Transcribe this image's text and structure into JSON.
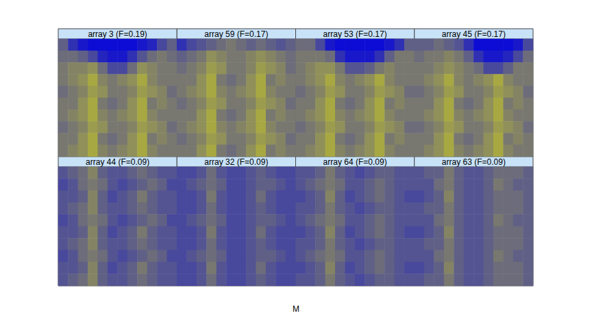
{
  "chart_data": {
    "type": "heatmap",
    "xlabel": "M",
    "tick_labels": false,
    "color_range": [
      0,
      1
    ],
    "colors": [
      "#0000e0",
      "#f0f000"
    ],
    "panels": [
      {
        "title": "array 3 (F=0.19)",
        "cells": [
          [
            0.4,
            0.2,
            0.1,
            0.05,
            0.05,
            0.05,
            0.05,
            0.05,
            0.1,
            0.15,
            0.3,
            0.4
          ],
          [
            0.45,
            0.45,
            0.4,
            0.3,
            0.15,
            0.1,
            0.1,
            0.2,
            0.35,
            0.45,
            0.5,
            0.45
          ],
          [
            0.5,
            0.55,
            0.55,
            0.6,
            0.45,
            0.3,
            0.3,
            0.45,
            0.6,
            0.55,
            0.5,
            0.5
          ],
          [
            0.5,
            0.55,
            0.6,
            0.7,
            0.55,
            0.5,
            0.55,
            0.6,
            0.7,
            0.55,
            0.5,
            0.5
          ],
          [
            0.45,
            0.5,
            0.55,
            0.65,
            0.6,
            0.5,
            0.5,
            0.55,
            0.65,
            0.6,
            0.55,
            0.45
          ],
          [
            0.5,
            0.5,
            0.6,
            0.7,
            0.5,
            0.45,
            0.5,
            0.6,
            0.7,
            0.5,
            0.55,
            0.5
          ],
          [
            0.5,
            0.55,
            0.6,
            0.7,
            0.55,
            0.5,
            0.55,
            0.6,
            0.7,
            0.55,
            0.5,
            0.5
          ],
          [
            0.45,
            0.5,
            0.55,
            0.65,
            0.6,
            0.5,
            0.5,
            0.55,
            0.65,
            0.6,
            0.55,
            0.45
          ],
          [
            0.5,
            0.5,
            0.6,
            0.7,
            0.5,
            0.45,
            0.5,
            0.6,
            0.7,
            0.5,
            0.55,
            0.5
          ],
          [
            0.5,
            0.55,
            0.6,
            0.7,
            0.55,
            0.5,
            0.55,
            0.6,
            0.7,
            0.55,
            0.5,
            0.5
          ]
        ]
      },
      {
        "title": "array 59 (F=0.17)",
        "cells": [
          [
            0.2,
            0.3,
            0.35,
            0.4,
            0.45,
            0.5,
            0.45,
            0.4,
            0.45,
            0.4,
            0.35,
            0.4
          ],
          [
            0.4,
            0.45,
            0.5,
            0.6,
            0.55,
            0.5,
            0.5,
            0.55,
            0.6,
            0.55,
            0.5,
            0.45
          ],
          [
            0.45,
            0.5,
            0.55,
            0.65,
            0.6,
            0.5,
            0.5,
            0.55,
            0.65,
            0.6,
            0.55,
            0.45
          ],
          [
            0.5,
            0.5,
            0.6,
            0.7,
            0.5,
            0.45,
            0.5,
            0.6,
            0.7,
            0.5,
            0.55,
            0.5
          ],
          [
            0.5,
            0.55,
            0.6,
            0.7,
            0.55,
            0.5,
            0.55,
            0.6,
            0.7,
            0.55,
            0.5,
            0.5
          ],
          [
            0.45,
            0.5,
            0.55,
            0.65,
            0.6,
            0.5,
            0.5,
            0.55,
            0.65,
            0.6,
            0.55,
            0.45
          ],
          [
            0.5,
            0.5,
            0.6,
            0.7,
            0.5,
            0.45,
            0.5,
            0.6,
            0.7,
            0.5,
            0.55,
            0.5
          ],
          [
            0.5,
            0.55,
            0.6,
            0.7,
            0.55,
            0.5,
            0.55,
            0.6,
            0.7,
            0.55,
            0.5,
            0.5
          ],
          [
            0.45,
            0.5,
            0.55,
            0.65,
            0.6,
            0.5,
            0.5,
            0.55,
            0.65,
            0.6,
            0.55,
            0.45
          ],
          [
            0.5,
            0.5,
            0.6,
            0.7,
            0.5,
            0.45,
            0.5,
            0.6,
            0.7,
            0.5,
            0.55,
            0.5
          ]
        ]
      },
      {
        "title": "array 53 (F=0.17)",
        "cells": [
          [
            0.45,
            0.45,
            0.3,
            0.1,
            0.05,
            0.05,
            0.05,
            0.05,
            0.05,
            0.1,
            0.2,
            0.4
          ],
          [
            0.5,
            0.5,
            0.5,
            0.45,
            0.2,
            0.1,
            0.1,
            0.1,
            0.2,
            0.4,
            0.5,
            0.5
          ],
          [
            0.5,
            0.55,
            0.6,
            0.6,
            0.5,
            0.35,
            0.35,
            0.4,
            0.5,
            0.55,
            0.5,
            0.5
          ],
          [
            0.5,
            0.55,
            0.6,
            0.7,
            0.55,
            0.5,
            0.55,
            0.6,
            0.7,
            0.55,
            0.5,
            0.5
          ],
          [
            0.45,
            0.5,
            0.55,
            0.65,
            0.6,
            0.5,
            0.5,
            0.55,
            0.65,
            0.6,
            0.55,
            0.45
          ],
          [
            0.5,
            0.5,
            0.6,
            0.7,
            0.5,
            0.45,
            0.5,
            0.6,
            0.7,
            0.5,
            0.55,
            0.5
          ],
          [
            0.5,
            0.55,
            0.6,
            0.7,
            0.55,
            0.5,
            0.55,
            0.6,
            0.7,
            0.55,
            0.5,
            0.5
          ],
          [
            0.45,
            0.5,
            0.55,
            0.65,
            0.6,
            0.5,
            0.5,
            0.55,
            0.65,
            0.6,
            0.55,
            0.45
          ],
          [
            0.5,
            0.5,
            0.6,
            0.7,
            0.5,
            0.45,
            0.5,
            0.6,
            0.7,
            0.5,
            0.55,
            0.5
          ],
          [
            0.5,
            0.55,
            0.6,
            0.7,
            0.55,
            0.5,
            0.55,
            0.6,
            0.7,
            0.55,
            0.5,
            0.5
          ]
        ]
      },
      {
        "title": "array 45 (F=0.17)",
        "cells": [
          [
            0.4,
            0.4,
            0.45,
            0.4,
            0.35,
            0.2,
            0.05,
            0.05,
            0.05,
            0.05,
            0.1,
            0.3
          ],
          [
            0.45,
            0.5,
            0.5,
            0.55,
            0.5,
            0.4,
            0.2,
            0.1,
            0.1,
            0.15,
            0.3,
            0.45
          ],
          [
            0.5,
            0.5,
            0.55,
            0.6,
            0.55,
            0.5,
            0.45,
            0.3,
            0.3,
            0.4,
            0.5,
            0.5
          ],
          [
            0.5,
            0.55,
            0.6,
            0.7,
            0.55,
            0.5,
            0.55,
            0.6,
            0.7,
            0.55,
            0.5,
            0.5
          ],
          [
            0.45,
            0.5,
            0.55,
            0.65,
            0.6,
            0.5,
            0.5,
            0.55,
            0.65,
            0.6,
            0.55,
            0.45
          ],
          [
            0.5,
            0.5,
            0.6,
            0.7,
            0.5,
            0.45,
            0.5,
            0.6,
            0.7,
            0.5,
            0.55,
            0.5
          ],
          [
            0.5,
            0.55,
            0.6,
            0.7,
            0.55,
            0.5,
            0.55,
            0.6,
            0.7,
            0.55,
            0.5,
            0.5
          ],
          [
            0.45,
            0.5,
            0.55,
            0.65,
            0.6,
            0.5,
            0.5,
            0.55,
            0.65,
            0.6,
            0.55,
            0.45
          ],
          [
            0.5,
            0.5,
            0.6,
            0.7,
            0.5,
            0.45,
            0.5,
            0.6,
            0.7,
            0.5,
            0.55,
            0.5
          ],
          [
            0.5,
            0.55,
            0.6,
            0.7,
            0.55,
            0.5,
            0.55,
            0.6,
            0.7,
            0.55,
            0.5,
            0.5
          ]
        ]
      },
      {
        "title": "array 44 (F=0.09)",
        "cells": [
          [
            0.35,
            0.4,
            0.45,
            0.55,
            0.4,
            0.35,
            0.35,
            0.4,
            0.45,
            0.4,
            0.35,
            0.35
          ],
          [
            0.3,
            0.35,
            0.45,
            0.5,
            0.45,
            0.35,
            0.3,
            0.35,
            0.4,
            0.45,
            0.4,
            0.3
          ],
          [
            0.35,
            0.35,
            0.4,
            0.55,
            0.4,
            0.3,
            0.35,
            0.4,
            0.5,
            0.4,
            0.35,
            0.35
          ],
          [
            0.35,
            0.4,
            0.45,
            0.55,
            0.4,
            0.35,
            0.35,
            0.4,
            0.45,
            0.4,
            0.35,
            0.35
          ],
          [
            0.3,
            0.35,
            0.45,
            0.5,
            0.45,
            0.35,
            0.3,
            0.35,
            0.4,
            0.45,
            0.4,
            0.3
          ],
          [
            0.35,
            0.35,
            0.4,
            0.55,
            0.4,
            0.3,
            0.35,
            0.4,
            0.5,
            0.4,
            0.35,
            0.35
          ],
          [
            0.35,
            0.4,
            0.45,
            0.55,
            0.4,
            0.35,
            0.35,
            0.4,
            0.45,
            0.4,
            0.35,
            0.35
          ],
          [
            0.3,
            0.35,
            0.45,
            0.5,
            0.45,
            0.35,
            0.3,
            0.35,
            0.4,
            0.45,
            0.4,
            0.3
          ],
          [
            0.35,
            0.35,
            0.4,
            0.55,
            0.4,
            0.3,
            0.35,
            0.4,
            0.5,
            0.4,
            0.35,
            0.35
          ],
          [
            0.35,
            0.4,
            0.45,
            0.55,
            0.4,
            0.35,
            0.35,
            0.4,
            0.45,
            0.4,
            0.35,
            0.35
          ]
        ]
      },
      {
        "title": "array 32 (F=0.09)",
        "cells": [
          [
            0.3,
            0.3,
            0.35,
            0.45,
            0.35,
            0.3,
            0.3,
            0.35,
            0.4,
            0.35,
            0.3,
            0.3
          ],
          [
            0.3,
            0.35,
            0.4,
            0.45,
            0.4,
            0.3,
            0.3,
            0.35,
            0.4,
            0.4,
            0.35,
            0.3
          ],
          [
            0.3,
            0.3,
            0.35,
            0.5,
            0.35,
            0.3,
            0.3,
            0.35,
            0.45,
            0.35,
            0.3,
            0.3
          ],
          [
            0.3,
            0.3,
            0.35,
            0.45,
            0.35,
            0.3,
            0.3,
            0.35,
            0.4,
            0.35,
            0.3,
            0.3
          ],
          [
            0.3,
            0.35,
            0.4,
            0.45,
            0.4,
            0.3,
            0.3,
            0.35,
            0.4,
            0.4,
            0.35,
            0.3
          ],
          [
            0.3,
            0.3,
            0.35,
            0.5,
            0.35,
            0.3,
            0.3,
            0.35,
            0.45,
            0.35,
            0.3,
            0.3
          ],
          [
            0.3,
            0.3,
            0.35,
            0.45,
            0.35,
            0.3,
            0.3,
            0.35,
            0.4,
            0.35,
            0.3,
            0.3
          ],
          [
            0.3,
            0.35,
            0.4,
            0.45,
            0.4,
            0.3,
            0.3,
            0.35,
            0.4,
            0.4,
            0.35,
            0.3
          ],
          [
            0.3,
            0.3,
            0.35,
            0.5,
            0.35,
            0.3,
            0.3,
            0.35,
            0.45,
            0.35,
            0.3,
            0.3
          ],
          [
            0.3,
            0.3,
            0.35,
            0.45,
            0.35,
            0.3,
            0.3,
            0.35,
            0.4,
            0.35,
            0.3,
            0.3
          ]
        ]
      },
      {
        "title": "array 64 (F=0.09)",
        "cells": [
          [
            0.35,
            0.35,
            0.4,
            0.5,
            0.4,
            0.35,
            0.3,
            0.35,
            0.4,
            0.4,
            0.35,
            0.35
          ],
          [
            0.35,
            0.4,
            0.45,
            0.5,
            0.45,
            0.35,
            0.35,
            0.4,
            0.45,
            0.4,
            0.35,
            0.35
          ],
          [
            0.3,
            0.35,
            0.4,
            0.55,
            0.4,
            0.3,
            0.35,
            0.4,
            0.45,
            0.4,
            0.35,
            0.3
          ],
          [
            0.35,
            0.35,
            0.4,
            0.5,
            0.4,
            0.35,
            0.3,
            0.35,
            0.4,
            0.4,
            0.35,
            0.35
          ],
          [
            0.35,
            0.4,
            0.45,
            0.5,
            0.45,
            0.35,
            0.35,
            0.4,
            0.45,
            0.4,
            0.35,
            0.35
          ],
          [
            0.3,
            0.35,
            0.4,
            0.55,
            0.4,
            0.3,
            0.35,
            0.4,
            0.45,
            0.4,
            0.35,
            0.3
          ],
          [
            0.35,
            0.35,
            0.4,
            0.5,
            0.4,
            0.35,
            0.3,
            0.35,
            0.4,
            0.4,
            0.35,
            0.35
          ],
          [
            0.35,
            0.4,
            0.45,
            0.5,
            0.45,
            0.35,
            0.35,
            0.4,
            0.45,
            0.4,
            0.35,
            0.35
          ],
          [
            0.3,
            0.35,
            0.4,
            0.55,
            0.4,
            0.3,
            0.35,
            0.4,
            0.45,
            0.4,
            0.35,
            0.3
          ],
          [
            0.35,
            0.35,
            0.4,
            0.5,
            0.4,
            0.35,
            0.3,
            0.35,
            0.4,
            0.4,
            0.35,
            0.35
          ]
        ]
      },
      {
        "title": "array 63 (F=0.09)",
        "cells": [
          [
            0.35,
            0.4,
            0.4,
            0.5,
            0.4,
            0.35,
            0.35,
            0.4,
            0.45,
            0.45,
            0.45,
            0.4
          ],
          [
            0.35,
            0.35,
            0.45,
            0.5,
            0.4,
            0.35,
            0.35,
            0.4,
            0.5,
            0.45,
            0.4,
            0.4
          ],
          [
            0.3,
            0.35,
            0.4,
            0.55,
            0.4,
            0.35,
            0.35,
            0.4,
            0.45,
            0.45,
            0.45,
            0.4
          ],
          [
            0.35,
            0.4,
            0.4,
            0.5,
            0.4,
            0.35,
            0.35,
            0.4,
            0.45,
            0.45,
            0.45,
            0.4
          ],
          [
            0.35,
            0.35,
            0.45,
            0.5,
            0.4,
            0.35,
            0.35,
            0.4,
            0.5,
            0.45,
            0.4,
            0.4
          ],
          [
            0.3,
            0.35,
            0.4,
            0.55,
            0.4,
            0.35,
            0.35,
            0.4,
            0.45,
            0.45,
            0.45,
            0.4
          ],
          [
            0.35,
            0.4,
            0.4,
            0.5,
            0.4,
            0.35,
            0.35,
            0.4,
            0.45,
            0.45,
            0.45,
            0.4
          ],
          [
            0.35,
            0.35,
            0.45,
            0.5,
            0.4,
            0.35,
            0.35,
            0.4,
            0.5,
            0.45,
            0.4,
            0.4
          ],
          [
            0.3,
            0.35,
            0.4,
            0.55,
            0.4,
            0.35,
            0.35,
            0.4,
            0.45,
            0.45,
            0.45,
            0.4
          ],
          [
            0.35,
            0.4,
            0.4,
            0.5,
            0.4,
            0.35,
            0.35,
            0.4,
            0.45,
            0.45,
            0.45,
            0.4
          ]
        ]
      }
    ]
  }
}
